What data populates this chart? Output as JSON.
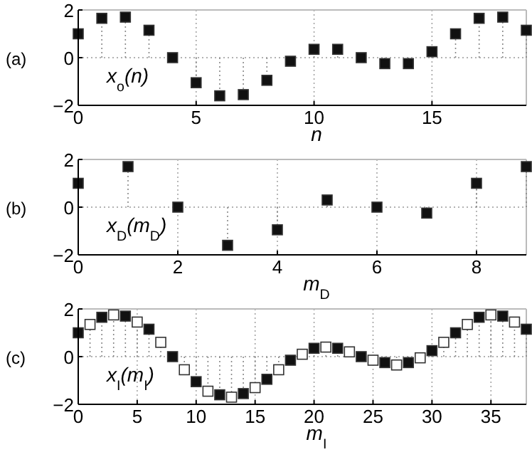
{
  "chart_data": [
    {
      "type": "lollipop",
      "title": "(a)",
      "xlabel": "n",
      "annotations": [
        "x$_{o}$(n)"
      ],
      "xlim": [
        0,
        19
      ],
      "xticks": [
        0,
        5,
        10,
        15
      ],
      "ylim": [
        -2,
        2
      ],
      "yticks": [
        -2,
        0,
        2
      ],
      "grid": true,
      "marker": "square",
      "line_style": "dotted",
      "series": [
        {
          "color": "#111111",
          "x": [
            0,
            1,
            2,
            3,
            4,
            5,
            6,
            7,
            8,
            9,
            10,
            11,
            12,
            13,
            14,
            15,
            16,
            17,
            18,
            19
          ],
          "values": [
            1.0,
            1.65,
            1.7,
            1.15,
            0,
            -1.05,
            -1.6,
            -1.55,
            -0.95,
            -0.15,
            0.35,
            0.35,
            0,
            -0.25,
            -0.25,
            0.25,
            1.0,
            1.65,
            1.7,
            1.15
          ]
        }
      ]
    },
    {
      "type": "lollipop",
      "title": "(b)",
      "xlabel": "m$_{D}$",
      "annotations": [
        "x$_{D}$(m$_{D}$)"
      ],
      "xlim": [
        0,
        9
      ],
      "xticks": [
        0,
        2,
        4,
        6,
        8
      ],
      "ylim": [
        -2,
        2
      ],
      "yticks": [
        -2,
        0,
        2
      ],
      "grid": true,
      "marker": "square",
      "line_style": "dotted",
      "series": [
        {
          "color": "#111111",
          "x": [
            0,
            1,
            2,
            3,
            4,
            5,
            6,
            7,
            8,
            9
          ],
          "values": [
            1.0,
            1.7,
            0,
            -1.6,
            -0.95,
            0.3,
            0,
            -0.25,
            1.0,
            1.7
          ]
        }
      ]
    },
    {
      "type": "lollipop",
      "title": "(c)",
      "xlabel": "m$_{I}$",
      "annotations": [
        "x$_{I}$(m$_{I}$)"
      ],
      "xlim": [
        0,
        38
      ],
      "xticks": [
        0,
        5,
        10,
        15,
        20,
        25,
        30,
        35
      ],
      "ylim": [
        -2,
        2
      ],
      "yticks": [
        -2,
        0,
        2
      ],
      "grid": true,
      "marker": "square",
      "line_style": "dotted",
      "series": [
        {
          "color": "#111111",
          "x": [
            0,
            2,
            4,
            6,
            8,
            10,
            12,
            14,
            16,
            18,
            20,
            22,
            24,
            26,
            28,
            30,
            32,
            34,
            36,
            38
          ],
          "values": [
            1.0,
            1.65,
            1.7,
            1.15,
            0,
            -1.05,
            -1.6,
            -1.55,
            -0.95,
            -0.15,
            0.35,
            0.35,
            0,
            -0.25,
            -0.25,
            0.25,
            1.0,
            1.65,
            1.7,
            1.15
          ]
        },
        {
          "color": "#ffffff",
          "x": [
            1,
            3,
            5,
            7,
            9,
            11,
            13,
            15,
            17,
            19,
            21,
            23,
            25,
            27,
            29,
            31,
            33,
            35,
            37
          ],
          "values": [
            1.35,
            1.75,
            1.45,
            0.6,
            -0.55,
            -1.45,
            -1.7,
            -1.3,
            -0.55,
            0.1,
            0.4,
            0.2,
            -0.15,
            -0.35,
            -0.05,
            0.6,
            1.35,
            1.75,
            1.45
          ]
        }
      ]
    }
  ]
}
